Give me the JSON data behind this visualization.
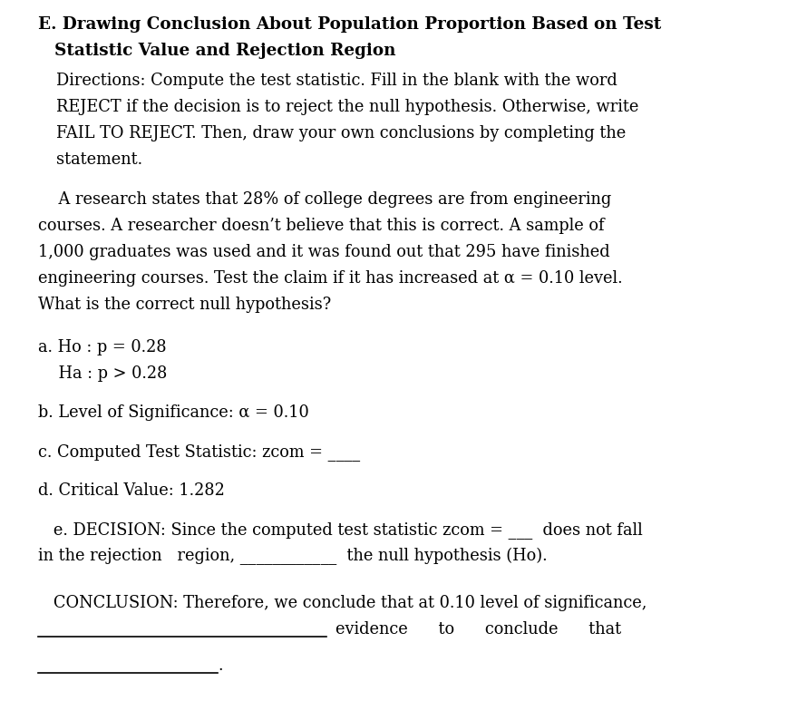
{
  "bg_color": "#ffffff",
  "title_bold_line1": "E. Drawing Conclusion About Population Proportion Based on Test",
  "title_bold_line2": "   Statistic Value and Rejection Region",
  "directions_lines": [
    "Directions: Compute the test statistic. Fill in the blank with the word",
    "REJECT if the decision is to reject the null hypothesis. Otherwise, write",
    "FAIL TO REJECT. Then, draw your own conclusions by completing the",
    "statement."
  ],
  "problem_lines": [
    "    A research states that 28% of college degrees are from engineering",
    "courses. A researcher doesn’t believe that this is correct. A sample of",
    "1,000 graduates was used and it was found out that 295 have finished",
    "engineering courses. Test the claim if it has increased at α = 0.10 level.",
    "What is the correct null hypothesis?"
  ],
  "item_a_line1": "a. Ho : p = 0.28",
  "item_a_line2": "    Ha : p > 0.28",
  "item_b": "b. Level of Significance: α = 0.10",
  "item_c": "c. Computed Test Statistic: zcom = ____",
  "item_d": "d. Critical Value: 1.282",
  "item_e_line1": "   e. DECISION: Since the computed test statistic zcom = ___  does not fall",
  "item_e_line2": "in the rejection   region, ____________  the null hypothesis (Ho).",
  "conclusion_line1": "   CONCLUSION: Therefore, we conclude that at 0.10 level of significance,",
  "conclusion_line2": "                          evidence      to      conclude      that",
  "font_family": "DejaVu Serif",
  "font_size_title": 13.2,
  "font_size_body": 12.8
}
